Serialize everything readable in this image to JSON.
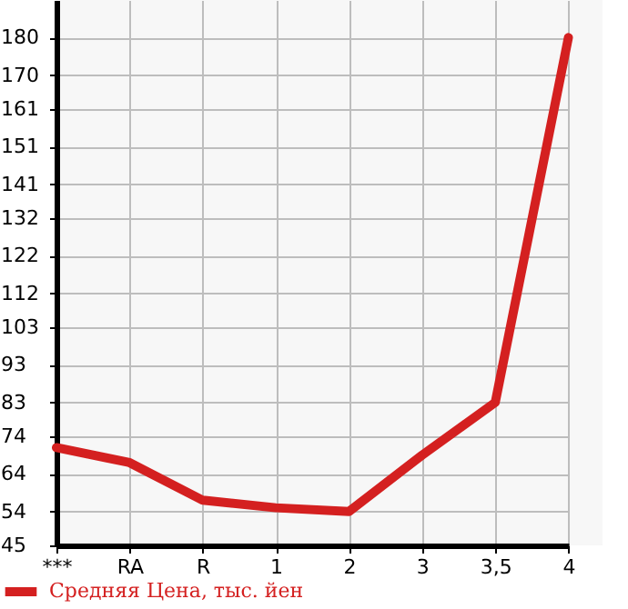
{
  "chart_data": {
    "type": "line",
    "categories": [
      "***",
      "RA",
      "R",
      "1",
      "2",
      "3",
      "3,5",
      "4"
    ],
    "series": [
      {
        "name": "Средняя Цена, тыс. йен",
        "color": "#d42020",
        "values": [
          71,
          67,
          57,
          55,
          54,
          69,
          83,
          180
        ]
      }
    ],
    "ylim": [
      45,
      190
    ],
    "yticks": [
      45,
      54,
      64,
      74,
      83,
      93,
      103,
      112,
      122,
      132,
      141,
      151,
      161,
      170,
      180
    ],
    "grid": true,
    "legend": "bottom",
    "marker": "none",
    "line_style": "solid"
  }
}
